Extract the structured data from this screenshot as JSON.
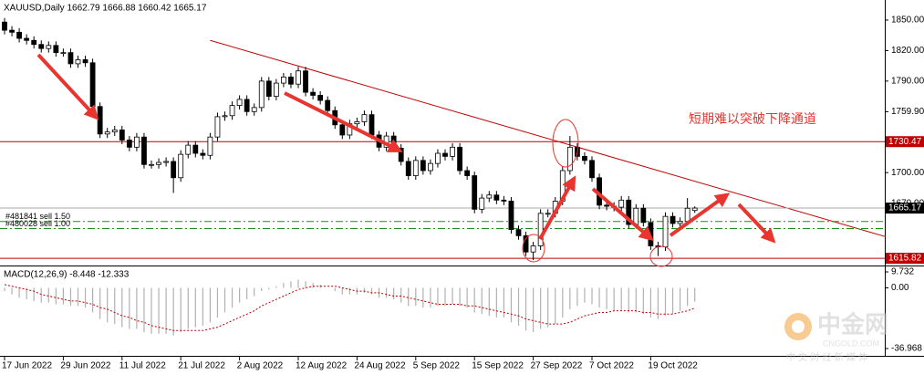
{
  "chart_data": [
    {
      "type": "candlestick",
      "title": "XAUUSD,Daily  1662.79 1666.88 1660.42 1665.17",
      "categories": [
        "17 Jun 2022",
        null,
        null,
        null,
        null,
        null,
        null,
        null,
        "29 Jun 2022",
        null,
        null,
        null,
        null,
        null,
        null,
        null,
        "11 Jul 2022",
        null,
        null,
        null,
        null,
        null,
        null,
        null,
        "21 Jul 2022",
        null,
        null,
        null,
        null,
        null,
        null,
        null,
        "2 Aug 2022",
        null,
        null,
        null,
        null,
        null,
        null,
        null,
        "12 Aug 2022",
        null,
        null,
        null,
        null,
        null,
        null,
        null,
        "24 Aug 2022",
        null,
        null,
        null,
        null,
        null,
        null,
        null,
        "5 Sep 2022",
        null,
        null,
        null,
        null,
        null,
        null,
        null,
        "15 Sep 2022",
        null,
        null,
        null,
        null,
        null,
        null,
        null,
        "27 Sep 2022",
        null,
        null,
        null,
        null,
        null,
        null,
        null,
        "7 Oct 2022",
        null,
        null,
        null,
        null,
        null,
        null,
        null,
        "19 Oct 2022",
        null,
        null,
        null,
        null,
        null,
        null
      ],
      "open": [
        1848,
        1840,
        1838,
        1832,
        1830,
        1826,
        1822,
        1825,
        1818,
        1818,
        1807,
        1811,
        1808,
        1765,
        1738,
        1740,
        1742,
        1732,
        1725,
        1735,
        1708,
        1708,
        1710,
        1711,
        1695,
        1718,
        1727,
        1719,
        1717,
        1735,
        1755,
        1756,
        1766,
        1772,
        1760,
        1764,
        1790,
        1775,
        1788,
        1794,
        1787,
        1800,
        1779,
        1776,
        1771,
        1761,
        1747,
        1737,
        1748,
        1750,
        1757,
        1737,
        1725,
        1736,
        1724,
        1711,
        1697,
        1712,
        1702,
        1709,
        1719,
        1716,
        1725,
        1702,
        1697,
        1664,
        1675,
        1678,
        1673,
        1672,
        1644,
        1638,
        1622,
        1628,
        1660,
        1660,
        1672,
        1702,
        1725,
        1716,
        1712,
        1695,
        1668,
        1667,
        1666,
        1673,
        1649,
        1665,
        1651,
        1628,
        1627,
        1657,
        1650,
        1652,
        1662.79
      ],
      "high": [
        1852,
        1844,
        1842,
        1836,
        1834,
        1830,
        1829,
        1829,
        1822,
        1822,
        1815,
        1815,
        1812,
        1769,
        1744,
        1746,
        1746,
        1736,
        1739,
        1739,
        1712,
        1714,
        1715,
        1715,
        1722,
        1731,
        1731,
        1723,
        1739,
        1759,
        1760,
        1770,
        1776,
        1776,
        1768,
        1794,
        1794,
        1792,
        1798,
        1798,
        1804,
        1804,
        1783,
        1780,
        1775,
        1765,
        1751,
        1752,
        1754,
        1761,
        1761,
        1741,
        1740,
        1740,
        1728,
        1715,
        1716,
        1716,
        1713,
        1723,
        1723,
        1729,
        1729,
        1706,
        1701,
        1679,
        1682,
        1682,
        1677,
        1676,
        1648,
        1642,
        1632,
        1664,
        1664,
        1676,
        1706,
        1736,
        1729,
        1720,
        1716,
        1699,
        1672,
        1671,
        1677,
        1677,
        1669,
        1669,
        1655,
        1632,
        1661,
        1661,
        1656,
        1675,
        1666.88
      ],
      "low": [
        1836,
        1834,
        1828,
        1826,
        1822,
        1818,
        1818,
        1814,
        1814,
        1803,
        1803,
        1804,
        1761,
        1734,
        1734,
        1736,
        1728,
        1721,
        1721,
        1704,
        1704,
        1704,
        1706,
        1680,
        1691,
        1714,
        1715,
        1713,
        1713,
        1731,
        1751,
        1752,
        1762,
        1756,
        1756,
        1760,
        1771,
        1771,
        1784,
        1783,
        1783,
        1775,
        1772,
        1767,
        1757,
        1743,
        1733,
        1733,
        1744,
        1746,
        1733,
        1721,
        1721,
        1720,
        1707,
        1693,
        1693,
        1698,
        1698,
        1705,
        1712,
        1712,
        1698,
        1693,
        1660,
        1660,
        1671,
        1669,
        1668,
        1640,
        1634,
        1618,
        1614,
        1624,
        1656,
        1656,
        1668,
        1698,
        1712,
        1708,
        1691,
        1664,
        1663,
        1662,
        1662,
        1645,
        1645,
        1647,
        1624,
        1618,
        1623,
        1646,
        1646,
        1648,
        1660.42
      ],
      "close": [
        1840,
        1838,
        1832,
        1830,
        1826,
        1822,
        1825,
        1818,
        1818,
        1807,
        1811,
        1808,
        1765,
        1738,
        1740,
        1742,
        1732,
        1725,
        1735,
        1708,
        1708,
        1710,
        1711,
        1695,
        1718,
        1727,
        1719,
        1717,
        1735,
        1755,
        1756,
        1766,
        1772,
        1760,
        1764,
        1790,
        1775,
        1788,
        1794,
        1787,
        1800,
        1779,
        1776,
        1771,
        1761,
        1747,
        1737,
        1748,
        1750,
        1757,
        1737,
        1725,
        1736,
        1724,
        1711,
        1697,
        1712,
        1702,
        1709,
        1719,
        1716,
        1725,
        1702,
        1697,
        1664,
        1675,
        1678,
        1673,
        1672,
        1644,
        1638,
        1622,
        1628,
        1660,
        1660,
        1672,
        1702,
        1725,
        1716,
        1712,
        1695,
        1668,
        1667,
        1666,
        1673,
        1649,
        1665,
        1651,
        1628,
        1627,
        1657,
        1650,
        1652,
        1665,
        1665.17
      ],
      "up_color": "#ffffff",
      "down_color": "#000000",
      "ylim": [
        1609.6,
        1869.7
      ],
      "yticks": [
        {
          "value": 1850,
          "label": "1850.00"
        },
        {
          "value": 1820,
          "label": "1820.00"
        },
        {
          "value": 1790,
          "label": "1790.00"
        },
        {
          "value": 1759.9,
          "label": "1759.90"
        },
        {
          "value": 1700,
          "label": "1700.00"
        },
        {
          "value": 1670,
          "label": "1670.00"
        }
      ],
      "levels": [
        1730.47,
        1615.82
      ],
      "level_color": "#c00000",
      "orders": [
        {
          "label": "#481841 sell 1.50",
          "price": 1652
        },
        {
          "label": "#480028 sell 1.00",
          "price": 1645
        }
      ],
      "trendline": {
        "x": [
          28,
          120
        ],
        "y": [
          1830,
          1637
        ],
        "color": "#c00000"
      },
      "annotation": "短期难以突破下降通道"
    },
    {
      "type": "macd",
      "title": "MACD(12,26,9) -8.448 -12.333",
      "series": [
        {
          "name": "MACD",
          "color": "#b0b0b0",
          "values": [
            -2,
            -4,
            -6,
            -7,
            -8,
            -9,
            -9,
            -10,
            -10,
            -11,
            -11,
            -12,
            -15,
            -19,
            -21,
            -22,
            -24,
            -25,
            -25,
            -27,
            -28,
            -28,
            -28,
            -29,
            -27,
            -25,
            -24,
            -23,
            -21,
            -18,
            -15,
            -12,
            -9,
            -7,
            -5,
            -2,
            -1,
            1,
            3,
            4,
            5,
            4,
            3,
            2,
            0,
            -2,
            -4,
            -4,
            -4,
            -3,
            -4,
            -6,
            -6,
            -7,
            -9,
            -11,
            -11,
            -12,
            -12,
            -11,
            -11,
            -10,
            -11,
            -12,
            -15,
            -16,
            -17,
            -18,
            -18,
            -21,
            -23,
            -26,
            -27,
            -25,
            -24,
            -22,
            -18,
            -13,
            -11,
            -9,
            -10,
            -12,
            -13,
            -14,
            -14,
            -15,
            -15,
            -16,
            -18,
            -19,
            -17,
            -16,
            -14,
            -11,
            -8.448
          ]
        },
        {
          "name": "Signal",
          "color": "#c00000",
          "values": [
            2,
            1,
            0,
            -1,
            -2,
            -4,
            -5,
            -6,
            -7,
            -8,
            -8,
            -9,
            -10,
            -12,
            -13,
            -15,
            -17,
            -18,
            -20,
            -21,
            -23,
            -24,
            -25,
            -26,
            -26,
            -26,
            -26,
            -26,
            -25,
            -24,
            -22,
            -20,
            -18,
            -16,
            -14,
            -11,
            -9,
            -7,
            -5,
            -3,
            -1,
            0,
            1,
            1,
            1,
            1,
            0,
            -1,
            -2,
            -2,
            -3,
            -3,
            -4,
            -5,
            -5,
            -6,
            -7,
            -8,
            -9,
            -10,
            -10,
            -10,
            -10,
            -11,
            -11,
            -12,
            -13,
            -14,
            -15,
            -16,
            -17,
            -19,
            -20,
            -21,
            -22,
            -22,
            -22,
            -21,
            -19,
            -17,
            -16,
            -15,
            -15,
            -14,
            -14,
            -14,
            -14,
            -15,
            -15,
            -16,
            -16,
            -16,
            -15,
            -14,
            -12.333
          ]
        }
      ],
      "ylim": [
        -36.968,
        9.732
      ],
      "yticks": [
        {
          "value": 9.732,
          "label": "9.732"
        },
        {
          "value": 0,
          "label": "0.00"
        },
        {
          "value": -36.968,
          "label": "-36.968"
        }
      ]
    }
  ],
  "watermark": {
    "title": "中金网",
    "site": "CNGOLD.COM",
    "slogan": "中 文 财 经 新 媒 体"
  }
}
